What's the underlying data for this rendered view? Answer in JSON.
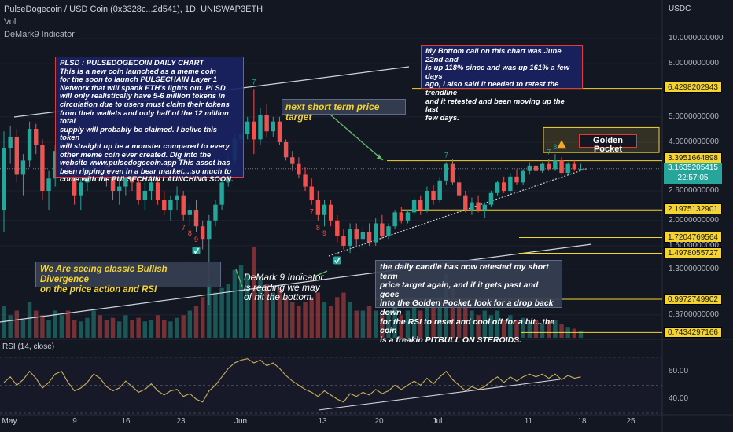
{
  "header": {
    "symbol_line": "PulseDogecoin / USD Coin (0x3328c...2d541), 1D, UNISWAP3ETH",
    "vol_label": "Vol",
    "indicator_label": "DeMark9 Indicator",
    "currency_label": "USDC",
    "rsi_label": "RSI (14, close)"
  },
  "colors": {
    "background": "#131722",
    "up": "#26a69a",
    "down": "#ef5350",
    "accent_yellow": "#f5d430",
    "rsi_line": "#c9b25a"
  },
  "notes": {
    "info_box": "PLSD : PULSEDOGECOIN DAILY CHART\nThis is a new coin launched as a meme coin\nfor the soon to launch PULSECHAIN Layer 1\nNetwork that will spank ETH's lights out. PLSD\nwill only realistically have 5-6 million tokens in\ncirculation due to users must claim their tokens\nfrom their wallets and only half of the 12 million total\nsupply will probably be claimed. I belive this token\nwill straight up be a monster compared to every\nother meme coin ever created. Dig into the\nwebsite www.pulsedogecoin.app This asset has\nbeen ripping even in a bear market....so much to\ncome with the PULSECHAIN LAUNCHING SOON.",
    "bottom_call": "My Bottom call on this chart was June 22nd and\nis up 118% since and was up 161% a few days\nago, I also said it needed to retest the trendline\nand it retested and been moving up the last\nfew days.",
    "short_target": "next short term price target",
    "golden_pocket": "Golden Pocket",
    "divergence": "We Are seeing classic Bullish Divergence\non the price action and RSI",
    "demark": "DeMark 9 Indicator\nis reading we may\nof hit the bottom.",
    "retest": "the daily candle has now retested my short term\nprice target again, and if it gets past and goes\ninto the Golden Pocket, look for a drop back down\nfor the RSI to reset and cool off for a bit...the coin\nis a freakin PITBULL ON STEROIDS."
  },
  "price_tags": {
    "level_1": "6.4298202943",
    "level_2": "3.3951664898",
    "current_price": "3.1635205415",
    "countdown": "22:57:05",
    "level_3": "2.1975132901",
    "level_4": "1.7204769564",
    "level_5": "1.4978055727",
    "level_6": "0.9972749902",
    "level_7": "0.7434297166"
  },
  "chart_data": [
    {
      "type": "candlestick",
      "title": "PulseDogecoin / USD Coin (0x3328c...2d541), 1D, UNISWAP3ETH",
      "y_scale": "log",
      "y_ticks": [
        "10.0000000000",
        "8.0000000000",
        "5.0000000000",
        "4.0000000000",
        "2.6000000000",
        "2.0000000000",
        "1.6000000000",
        "1.3000000000",
        "0.8700000000"
      ],
      "x_ticks": [
        "May",
        "9",
        "16",
        "23",
        "Jun",
        "13",
        "20",
        "Jul",
        "11",
        "18",
        "25"
      ],
      "horizontal_levels": [
        6.4298202943,
        3.3951664898,
        2.1975132901,
        1.7204769564,
        1.4978055727,
        0.9972749902,
        0.7434297166
      ],
      "current_price": 3.1635205415,
      "golden_pocket": [
        3.65,
        4.55
      ],
      "candles": [
        [
          2.2,
          4.4,
          1.8,
          3.8
        ],
        [
          3.8,
          4.6,
          3.3,
          4.2
        ],
        [
          4.2,
          4.5,
          2.8,
          3.0
        ],
        [
          3.0,
          3.6,
          2.5,
          3.4
        ],
        [
          3.4,
          4.8,
          3.2,
          4.5
        ],
        [
          4.5,
          4.7,
          3.6,
          3.9
        ],
        [
          3.9,
          4.1,
          2.4,
          2.6
        ],
        [
          2.6,
          3.1,
          2.2,
          2.9
        ],
        [
          2.9,
          3.9,
          2.7,
          3.7
        ],
        [
          3.7,
          4.3,
          3.4,
          4.0
        ],
        [
          4.0,
          4.1,
          2.9,
          3.1
        ],
        [
          3.1,
          3.3,
          2.3,
          2.5
        ],
        [
          2.5,
          2.9,
          2.2,
          2.8
        ],
        [
          2.8,
          3.4,
          2.6,
          3.2
        ],
        [
          3.2,
          4.0,
          3.0,
          3.6
        ],
        [
          3.6,
          4.2,
          3.2,
          3.4
        ],
        [
          3.4,
          3.6,
          2.7,
          2.9
        ],
        [
          2.9,
          3.1,
          2.4,
          2.6
        ],
        [
          2.6,
          2.9,
          2.3,
          2.7
        ],
        [
          2.7,
          3.3,
          2.5,
          3.1
        ],
        [
          3.1,
          3.3,
          2.6,
          2.8
        ],
        [
          2.8,
          2.9,
          2.3,
          2.4
        ],
        [
          2.4,
          2.8,
          2.2,
          2.6
        ],
        [
          2.6,
          3.0,
          2.4,
          2.8
        ],
        [
          2.8,
          3.0,
          2.3,
          2.4
        ],
        [
          2.4,
          2.6,
          2.1,
          2.2
        ],
        [
          2.2,
          2.5,
          2.0,
          2.4
        ],
        [
          2.4,
          2.7,
          2.2,
          2.5
        ],
        [
          2.5,
          2.6,
          2.0,
          2.1
        ],
        [
          2.1,
          2.3,
          1.9,
          2.2
        ],
        [
          2.2,
          2.4,
          1.8,
          1.9
        ],
        [
          1.9,
          2.0,
          1.55,
          1.7
        ],
        [
          1.7,
          2.1,
          0.95,
          2.0
        ],
        [
          2.0,
          2.4,
          1.9,
          2.3
        ],
        [
          2.3,
          2.9,
          2.2,
          2.8
        ],
        [
          2.8,
          3.6,
          2.7,
          3.4
        ],
        [
          3.4,
          4.3,
          3.3,
          4.1
        ],
        [
          4.1,
          4.6,
          3.9,
          4.3
        ],
        [
          4.3,
          5.0,
          4.1,
          4.8
        ],
        [
          4.8,
          6.4,
          3.6,
          4.1
        ],
        [
          4.1,
          5.4,
          3.9,
          5.1
        ],
        [
          5.1,
          5.6,
          4.2,
          4.4
        ],
        [
          4.4,
          5.0,
          4.2,
          4.8
        ],
        [
          4.8,
          5.0,
          3.9,
          4.0
        ],
        [
          4.0,
          4.1,
          3.4,
          3.5
        ],
        [
          3.5,
          3.7,
          3.1,
          3.3
        ],
        [
          3.3,
          3.5,
          2.9,
          3.0
        ],
        [
          3.0,
          3.2,
          2.6,
          2.7
        ],
        [
          2.7,
          2.9,
          2.3,
          2.4
        ],
        [
          2.4,
          2.6,
          2.0,
          2.1
        ],
        [
          2.1,
          2.4,
          1.9,
          2.3
        ],
        [
          2.3,
          2.4,
          1.9,
          2.0
        ],
        [
          2.0,
          2.1,
          1.65,
          1.75
        ],
        [
          1.75,
          1.85,
          1.55,
          1.6
        ],
        [
          1.6,
          1.95,
          1.5,
          1.85
        ],
        [
          1.85,
          1.95,
          1.6,
          1.7
        ],
        [
          1.7,
          1.9,
          1.55,
          1.8
        ],
        [
          1.8,
          1.95,
          1.6,
          1.65
        ],
        [
          1.65,
          2.05,
          1.6,
          1.95
        ],
        [
          1.95,
          2.1,
          1.7,
          1.75
        ],
        [
          1.75,
          1.95,
          1.7,
          1.9
        ],
        [
          1.9,
          2.2,
          1.85,
          2.15
        ],
        [
          2.15,
          2.25,
          1.95,
          2.0
        ],
        [
          2.0,
          2.2,
          1.95,
          2.15
        ],
        [
          2.15,
          2.45,
          2.1,
          2.4
        ],
        [
          2.4,
          2.5,
          2.1,
          2.2
        ],
        [
          2.2,
          2.7,
          2.15,
          2.6
        ],
        [
          2.6,
          2.75,
          2.3,
          2.4
        ],
        [
          2.4,
          2.95,
          2.35,
          2.85
        ],
        [
          2.85,
          3.35,
          2.75,
          3.3
        ],
        [
          3.3,
          3.45,
          2.75,
          2.8
        ],
        [
          2.8,
          2.95,
          2.45,
          2.5
        ],
        [
          2.5,
          2.6,
          2.15,
          2.2
        ],
        [
          2.2,
          2.45,
          2.1,
          2.35
        ],
        [
          2.35,
          2.5,
          2.15,
          2.2
        ],
        [
          2.2,
          2.35,
          2.05,
          2.3
        ],
        [
          2.3,
          2.6,
          2.25,
          2.55
        ],
        [
          2.55,
          2.85,
          2.5,
          2.8
        ],
        [
          2.8,
          2.95,
          2.55,
          2.6
        ],
        [
          2.6,
          3.05,
          2.55,
          2.95
        ],
        [
          2.95,
          3.15,
          2.75,
          2.8
        ],
        [
          2.8,
          3.15,
          2.75,
          3.1
        ],
        [
          3.1,
          3.35,
          3.0,
          3.25
        ],
        [
          3.25,
          3.3,
          3.05,
          3.1
        ],
        [
          3.1,
          3.35,
          3.05,
          3.3
        ],
        [
          3.3,
          3.45,
          3.1,
          3.15
        ],
        [
          3.15,
          3.6,
          3.1,
          3.4
        ],
        [
          3.4,
          3.5,
          3.0,
          3.05
        ],
        [
          3.05,
          3.35,
          3.0,
          3.3
        ],
        [
          3.3,
          3.4,
          3.1,
          3.15
        ],
        [
          3.15,
          3.3,
          3.1,
          3.16
        ]
      ],
      "volumes": [
        0.35,
        0.25,
        0.3,
        0.2,
        0.4,
        0.3,
        0.25,
        0.2,
        0.3,
        0.25,
        0.3,
        0.2,
        0.18,
        0.22,
        0.3,
        0.25,
        0.2,
        0.22,
        0.18,
        0.25,
        0.2,
        0.22,
        0.18,
        0.2,
        0.25,
        0.2,
        0.18,
        0.22,
        0.25,
        0.3,
        0.35,
        0.45,
        0.6,
        0.5,
        0.55,
        0.6,
        0.75,
        0.8,
        0.7,
        1.0,
        0.65,
        0.6,
        0.5,
        0.55,
        0.45,
        0.4,
        0.35,
        0.4,
        0.45,
        0.5,
        0.4,
        0.35,
        0.45,
        0.5,
        0.4,
        0.3,
        0.3,
        0.35,
        0.3,
        0.25,
        0.3,
        0.35,
        0.25,
        0.3,
        0.35,
        0.3,
        0.4,
        0.35,
        0.45,
        0.7,
        0.55,
        0.45,
        0.35,
        0.3,
        0.25,
        0.3,
        0.25,
        0.3,
        0.2,
        0.25,
        0.2,
        0.22,
        0.18,
        0.2,
        0.15,
        0.18,
        0.2,
        0.15,
        0.12,
        0.1,
        0.08
      ],
      "demark_labels": [
        {
          "text": "7",
          "candle": 28,
          "color": "#ef5350"
        },
        {
          "text": "8",
          "candle": 29,
          "color": "#ef5350"
        },
        {
          "text": "9",
          "candle": 30,
          "color": "#ef5350"
        },
        {
          "text": "7",
          "candle": 39,
          "color": "#26a69a"
        },
        {
          "text": "7",
          "candle": 48,
          "color": "#ef5350"
        },
        {
          "text": "8",
          "candle": 49,
          "color": "#ef5350"
        },
        {
          "text": "9",
          "candle": 50,
          "color": "#ef5350"
        },
        {
          "text": "7",
          "candle": 69,
          "color": "#26a69a"
        },
        {
          "text": "7",
          "candle": 85,
          "color": "#26a69a"
        },
        {
          "text": "8",
          "candle": 86,
          "color": "#26a69a"
        }
      ]
    },
    {
      "type": "line",
      "title": "RSI (14, close)",
      "y_ticks": [
        "60.00",
        "40.00"
      ],
      "ylim": [
        30,
        75
      ],
      "values": [
        52,
        56,
        50,
        54,
        60,
        55,
        48,
        52,
        58,
        60,
        52,
        46,
        48,
        52,
        58,
        55,
        49,
        46,
        48,
        53,
        49,
        45,
        47,
        51,
        46,
        43,
        46,
        47,
        42,
        44,
        40,
        38,
        46,
        50,
        56,
        62,
        66,
        68,
        69,
        66,
        68,
        64,
        66,
        62,
        57,
        53,
        50,
        47,
        45,
        42,
        46,
        43,
        40,
        38,
        44,
        42,
        45,
        43,
        47,
        44,
        46,
        50,
        47,
        50,
        53,
        50,
        55,
        51,
        56,
        60,
        54,
        50,
        46,
        49,
        47,
        49,
        53,
        56,
        52,
        56,
        53,
        56,
        58,
        56,
        58,
        55,
        58,
        54,
        57,
        55,
        56
      ]
    }
  ]
}
